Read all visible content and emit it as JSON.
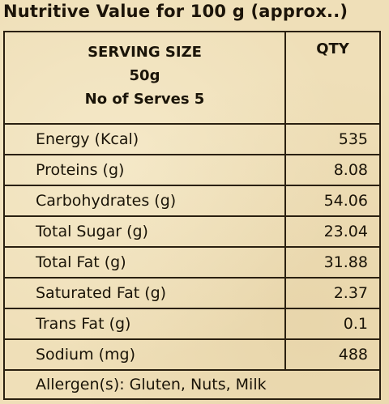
{
  "title": "Nutritive Value for 100 g (approx..)",
  "header": {
    "serving_size_label": "SERVING SIZE",
    "serving_size_value": "50g",
    "serves": "No of Serves 5",
    "qty_label": "QTY"
  },
  "rows": [
    {
      "label": "Energy (Kcal)",
      "value": "535"
    },
    {
      "label": "Proteins (g)",
      "value": "8.08"
    },
    {
      "label": "Carbohydrates (g)",
      "value": "54.06"
    },
    {
      "label": "Total Sugar (g)",
      "value": "23.04"
    },
    {
      "label": "Total Fat (g)",
      "value": "31.88"
    },
    {
      "label": "Saturated Fat (g)",
      "value": "2.37"
    },
    {
      "label": "Trans Fat (g)",
      "value": "0.1"
    },
    {
      "label": "Sodium (mg)",
      "value": "488"
    }
  ],
  "allergen": "Allergen(s): Gluten, Nuts, Milk"
}
